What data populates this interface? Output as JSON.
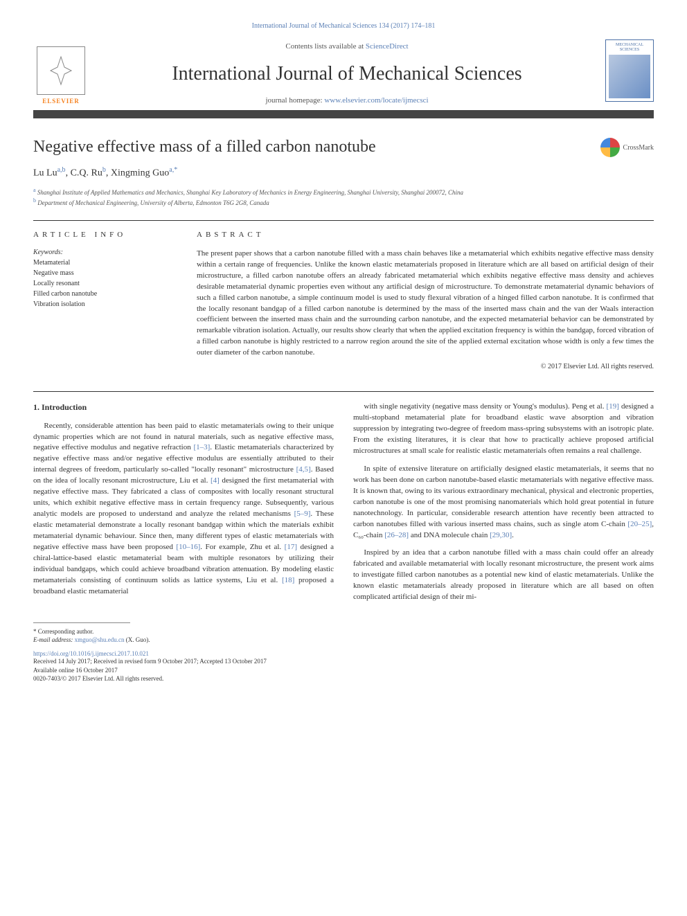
{
  "top_link": {
    "prefix": "International Journal of Mechanical Sciences 134 (2017) 174–181"
  },
  "masthead": {
    "contents_prefix": "Contents lists available at ",
    "contents_link": "ScienceDirect",
    "journal_name": "International Journal of Mechanical Sciences",
    "homepage_prefix": "journal homepage: ",
    "homepage_link": "www.elsevier.com/locate/ijmecsci",
    "elsevier_label": "ELSEVIER",
    "cover_title": "MECHANICAL SCIENCES"
  },
  "article": {
    "title": "Negative effective mass of a filled carbon nanotube",
    "crossmark_label": "CrossMark",
    "authors_html": "Lu Lu|a,b|, C.Q. Ru|b|, Xingming Guo|a,*|",
    "affiliations": [
      {
        "sup": "a",
        "text": "Shanghai Institute of Applied Mathematics and Mechanics, Shanghai Key Laboratory of Mechanics in Energy Engineering, Shanghai University, Shanghai 200072, China"
      },
      {
        "sup": "b",
        "text": "Department of Mechanical Engineering, University of Alberta, Edmonton T6G 2G8, Canada"
      }
    ]
  },
  "info": {
    "heading": "article info",
    "keywords_label": "Keywords:",
    "keywords": [
      "Metamaterial",
      "Negative mass",
      "Locally resonant",
      "Filled carbon nanotube",
      "Vibration isolation"
    ]
  },
  "abstract": {
    "heading": "abstract",
    "text": "The present paper shows that a carbon nanotube filled with a mass chain behaves like a metamaterial which exhibits negative effective mass density within a certain range of frequencies. Unlike the known elastic metamaterials proposed in literature which are all based on artificial design of their microstructure, a filled carbon nanotube offers an already fabricated metamaterial which exhibits negative effective mass density and achieves desirable metamaterial dynamic properties even without any artificial design of microstructure. To demonstrate metamaterial dynamic behaviors of such a filled carbon nanotube, a simple continuum model is used to study flexural vibration of a hinged filled carbon nanotube. It is confirmed that the locally resonant bandgap of a filled carbon nanotube is determined by the mass of the inserted mass chain and the van der Waals interaction coefficient between the inserted mass chain and the surrounding carbon nanotube, and the expected metamaterial behavior can be demonstrated by remarkable vibration isolation. Actually, our results show clearly that when the applied excitation frequency is within the bandgap, forced vibration of a filled carbon nanotube is highly restricted to a narrow region around the site of the applied external excitation whose width is only a few times the outer diameter of the carbon nanotube.",
    "copyright": "© 2017 Elsevier Ltd. All rights reserved."
  },
  "body": {
    "heading": "1. Introduction",
    "paragraphs": [
      "Recently, considerable attention has been paid to elastic metamaterials owing to their unique dynamic properties which are not found in natural materials, such as negative effective mass, negative effective modulus and negative refraction <ref>[1–3]</ref>. Elastic metamaterials characterized by negative effective mass and/or negative effective modulus are essentially attributed to their internal degrees of freedom, particularly so-called \"locally resonant\" microstructure <ref>[4,5]</ref>. Based on the idea of locally resonant microstructure, Liu et al. <ref>[4]</ref> designed the first metamaterial with negative effective mass. They fabricated a class of composites with locally resonant structural units, which exhibit negative effective mass in certain frequency range. Subsequently, various analytic models are proposed to understand and analyze the related mechanisms <ref>[5–9]</ref>. These elastic metamaterial demonstrate a locally resonant bandgap within which the materials exhibit metamaterial dynamic behaviour. Since then, many different types of elastic metamaterials with negative effective mass have been proposed <ref>[10–16]</ref>. For example, Zhu et al. <ref>[17]</ref> designed a chiral-lattice-based elastic metamaterial beam with multiple resonators by utilizing their individual bandgaps, which could achieve broadband vibration attenuation. By modeling elastic metamaterials consisting of continuum solids as lattice systems, Liu et al. <ref>[18]</ref> proposed a broadband elastic metamaterial",
      "with single negativity (negative mass density or Young's modulus). Peng et al. <ref>[19]</ref> designed a multi-stopband metamaterial plate for broadband elastic wave absorption and vibration suppression by integrating two-degree of freedom mass-spring subsystems with an isotropic plate. From the existing literatures, it is clear that how to practically achieve proposed artificial microstructures at small scale for realistic elastic metamaterials often remains a real challenge.",
      "In spite of extensive literature on artificially designed elastic metamaterials, it seems that no work has been done on carbon nanotube-based elastic metamaterials with negative effective mass. It is known that, owing to its various extraordinary mechanical, physical and electronic properties, carbon nanotube is one of the most promising nanomaterials which hold great potential in future nanotechnology. In particular, considerable research attention have recently been attracted to carbon nanotubes filled with various inserted mass chains, such as single atom C-chain <ref>[20–25]</ref>, C₆₀-chain <ref>[26–28]</ref> and DNA molecule chain <ref>[29,30]</ref>.",
      "Inspired by an idea that a carbon nanotube filled with a mass chain could offer an already fabricated and available metamaterial with locally resonant microstructure, the present work aims to investigate filled carbon nanotubes as a potential new kind of elastic metamaterials. Unlike the known elastic metamaterials already proposed in literature which are all based on often complicated artificial design of their mi-"
    ]
  },
  "footer": {
    "corr": "* Corresponding author.",
    "email_label": "E-mail address: ",
    "email": "xmguo@shu.edu.cn",
    "email_suffix": " (X. Guo).",
    "doi": "https://doi.org/10.1016/j.ijmecsci.2017.10.021",
    "dates1": "Received 14 July 2017; Received in revised form 9 October 2017; Accepted 13 October 2017",
    "dates2": "Available online 16 October 2017",
    "issn": "0020-7403/© 2017 Elsevier Ltd. All rights reserved."
  },
  "colors": {
    "link": "#5a7fb5",
    "text": "#333333",
    "elsevier_orange": "#f58220",
    "rule": "#444444"
  }
}
